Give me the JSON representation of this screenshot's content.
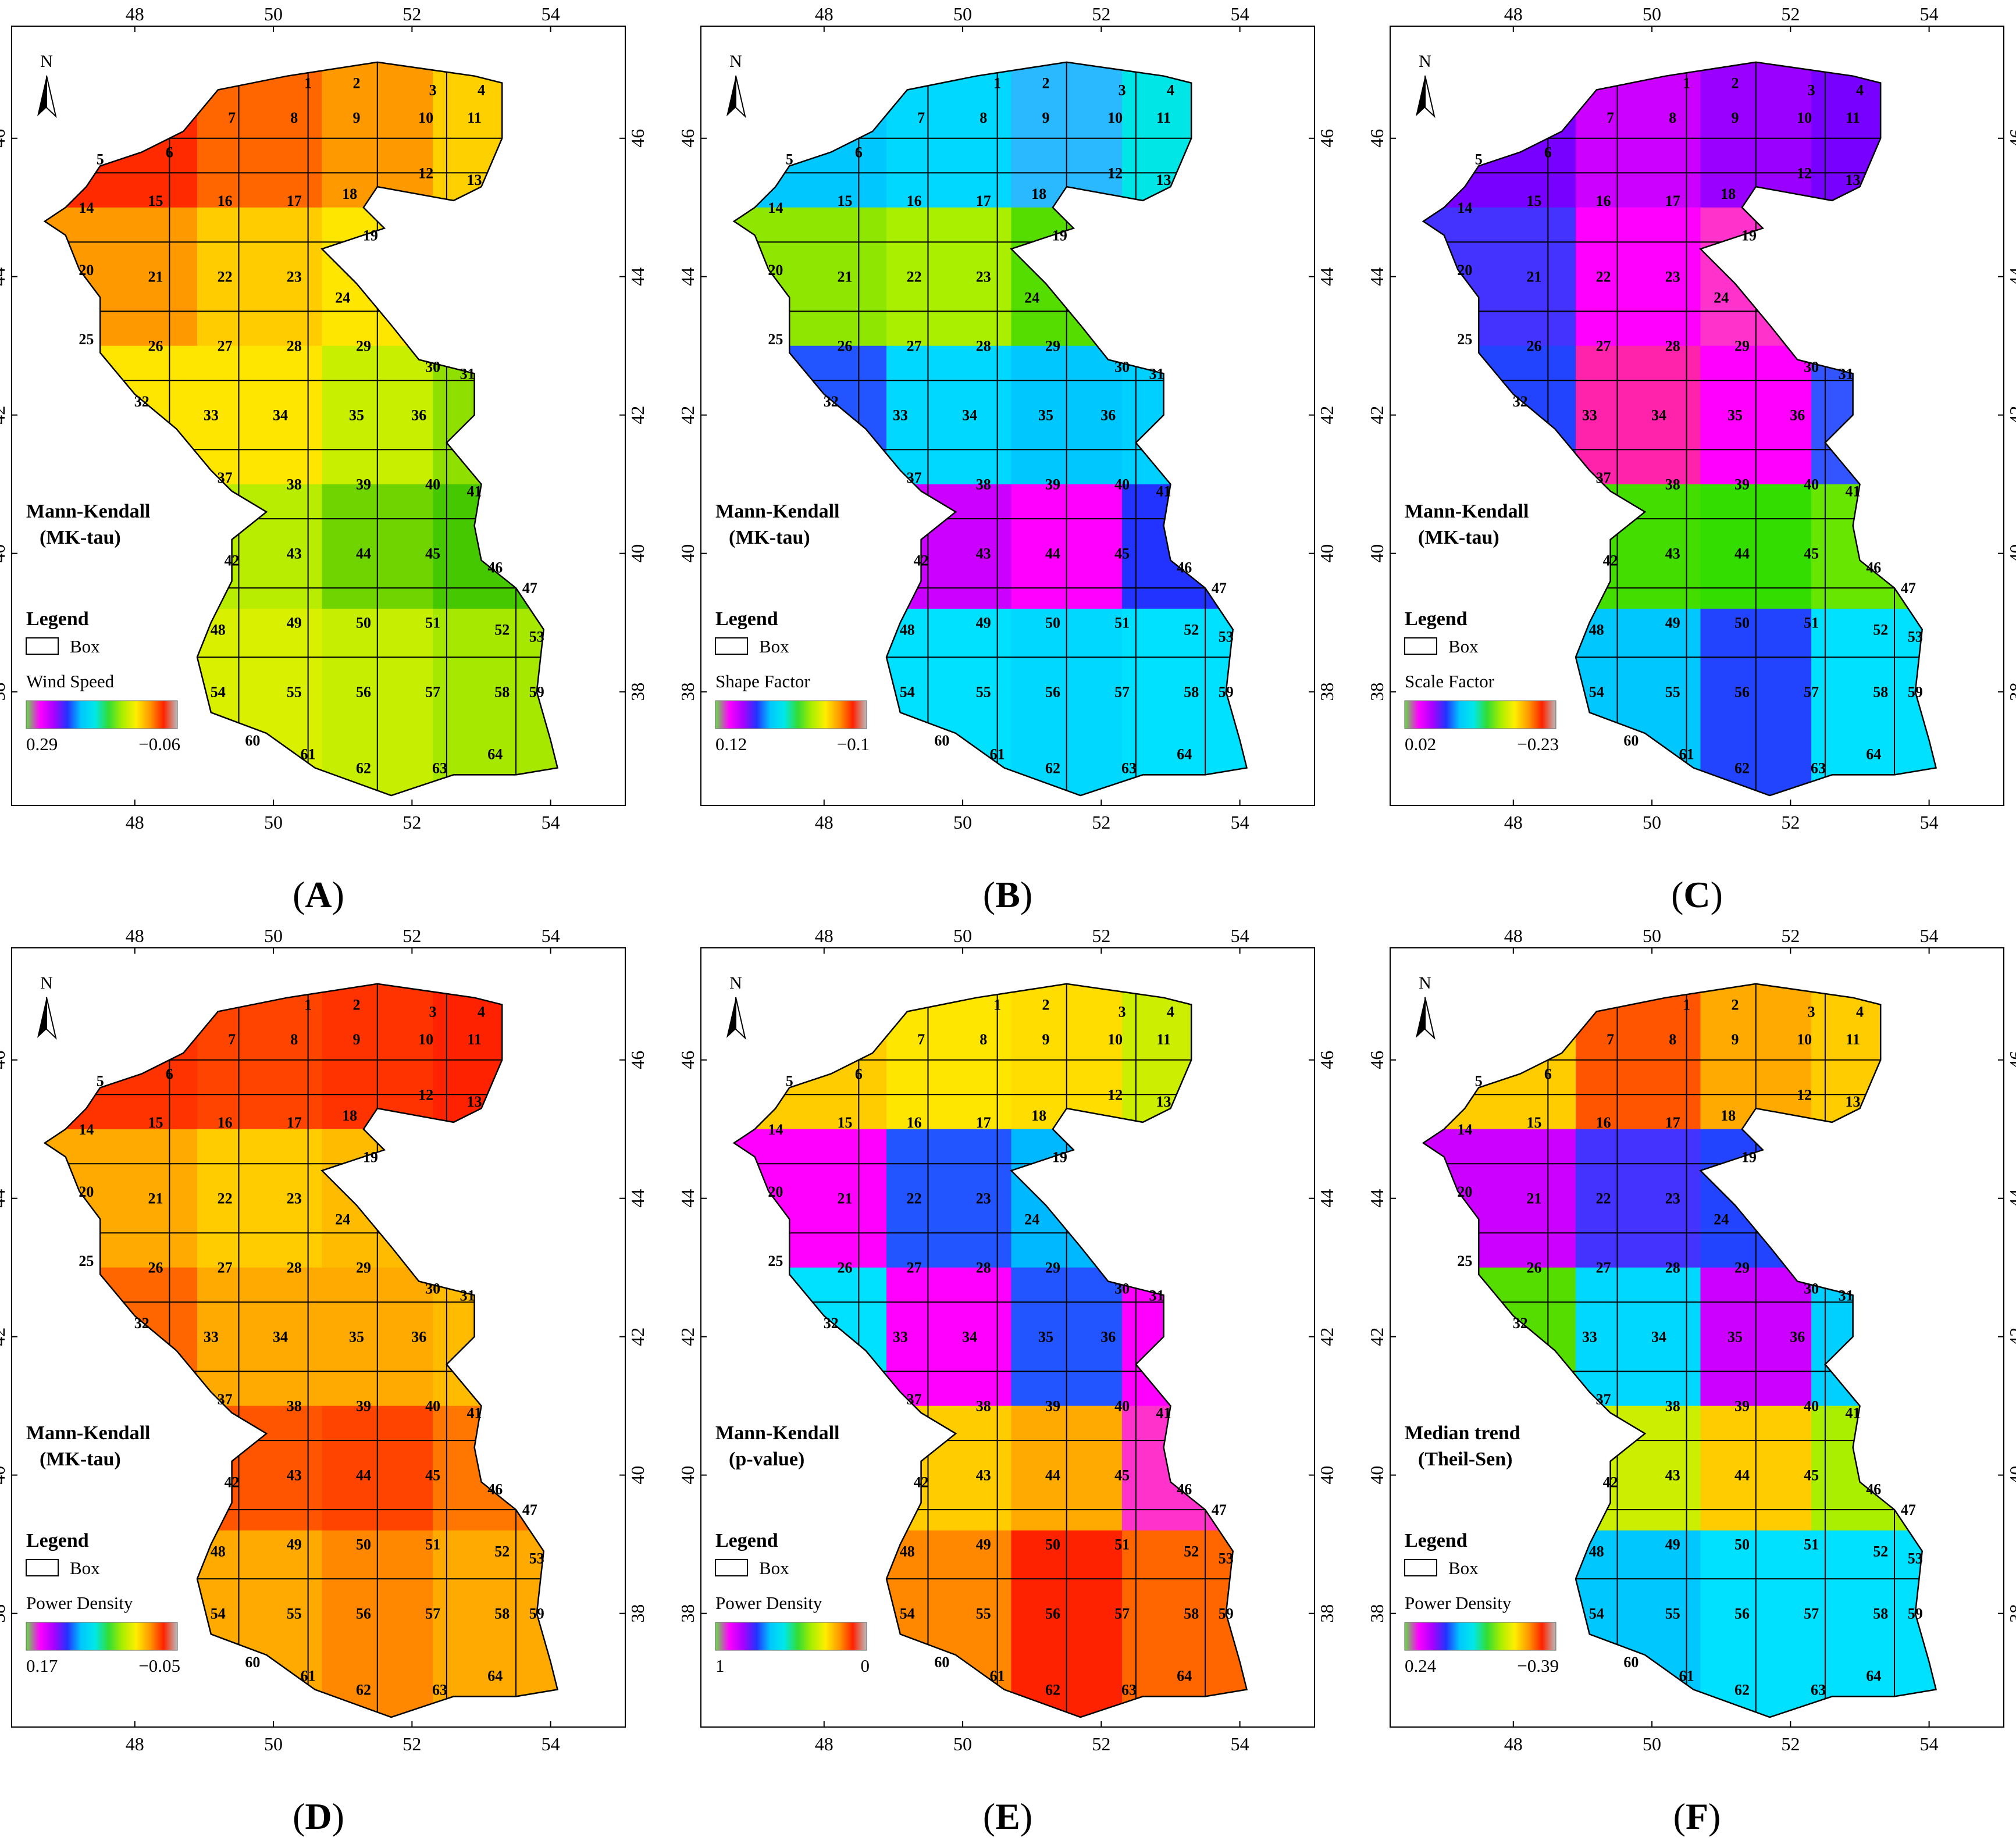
{
  "panels": [
    {
      "id": "A",
      "label": "A",
      "title_line1": "Mann-Kendall",
      "title_line2": "(MK-tau)",
      "variable": "Wind Speed",
      "scale_left": "0.29",
      "scale_right": "−0.06",
      "grid_fill": [
        [
          "#ff2a00",
          "#ff6600",
          "#ff9900",
          "#ffd000"
        ],
        [
          "#ff9900",
          "#ffcc00",
          "#ffe600",
          "#d4ef00"
        ],
        [
          "#ffe600",
          "#ffe600",
          "#c8ef00",
          "#8fe000"
        ],
        [
          "#ffe600",
          "#b8ec00",
          "#6fd400",
          "#45c800"
        ],
        [
          "#2ad8ff",
          "#d9f000",
          "#c5ee00",
          "#a7e800"
        ]
      ]
    },
    {
      "id": "B",
      "label": "B",
      "title_line1": "Mann-Kendall",
      "title_line2": "(MK-tau)",
      "variable": "Shape Factor",
      "scale_left": "0.12",
      "scale_right": "−0.1",
      "grid_fill": [
        [
          "#00c8ff",
          "#00d8ff",
          "#2ab8ff",
          "#00e6e6"
        ],
        [
          "#8fe600",
          "#aaee00",
          "#55dd00",
          "#00d8ff"
        ],
        [
          "#2255ff",
          "#00d8ff",
          "#00c8ff",
          "#00d0ff"
        ],
        [
          "#00d0ff",
          "#cc00ff",
          "#ff00ff",
          "#2233ff"
        ],
        [
          "#66dd00",
          "#00e0ff",
          "#00d8ff",
          "#00e0ff"
        ]
      ]
    },
    {
      "id": "C",
      "label": "C",
      "title_line1": "Mann-Kendall",
      "title_line2": "(MK-tau)",
      "variable": "Scale Factor",
      "scale_left": "0.02",
      "scale_right": "−0.23",
      "grid_fill": [
        [
          "#7700ff",
          "#cc00ff",
          "#9900ff",
          "#7700ff"
        ],
        [
          "#4433ff",
          "#ff00ff",
          "#ff33cc",
          "#3355ff"
        ],
        [
          "#2244ff",
          "#ff22aa",
          "#ff00ff",
          "#3355ff"
        ],
        [
          "#00e0ff",
          "#44dd00",
          "#33dd00",
          "#66e600"
        ],
        [
          "#2244ff",
          "#00c8ff",
          "#2244ff",
          "#00e0ff"
        ]
      ]
    },
    {
      "id": "D",
      "label": "D",
      "title_line1": "Mann-Kendall",
      "title_line2": "(MK-tau)",
      "variable": "Power Density",
      "scale_left": "0.17",
      "scale_right": "−0.05",
      "grid_fill": [
        [
          "#ff3300",
          "#ff4400",
          "#ff3300",
          "#ff2200"
        ],
        [
          "#ffaa00",
          "#ffcc00",
          "#ffbb00",
          "#ff9900"
        ],
        [
          "#ff6600",
          "#ffaa00",
          "#ffaa00",
          "#ffbb00"
        ],
        [
          "#ffcc00",
          "#ff5500",
          "#ff4400",
          "#ff7700"
        ],
        [
          "#ff8800",
          "#ffaa00",
          "#ff8800",
          "#ffaa00"
        ]
      ]
    },
    {
      "id": "E",
      "label": "E",
      "title_line1": "Mann-Kendall",
      "title_line2": "(p-value)",
      "variable": "Power Density",
      "scale_left": "1",
      "scale_right": "0",
      "grid_fill": [
        [
          "#ffcc00",
          "#ffe600",
          "#ffdd00",
          "#ccee00"
        ],
        [
          "#ff00ff",
          "#2255ff",
          "#00b8ff",
          "#ff22aa"
        ],
        [
          "#00e0ff",
          "#ff00ff",
          "#2255ff",
          "#ff00ff"
        ],
        [
          "#00d8ff",
          "#ffcc00",
          "#ffaa00",
          "#ff33cc"
        ],
        [
          "#ffaa00",
          "#ff8800",
          "#ff2200",
          "#ff6600"
        ]
      ]
    },
    {
      "id": "F",
      "label": "F",
      "title_line1": "Median trend",
      "title_line2": "(Theil-Sen)",
      "variable": "Power Density",
      "scale_left": "0.24",
      "scale_right": "−0.39",
      "grid_fill": [
        [
          "#ffcc00",
          "#ff5500",
          "#ffaa00",
          "#ffcc00"
        ],
        [
          "#cc00ff",
          "#4433ff",
          "#2244ff",
          "#00c8ff"
        ],
        [
          "#55dd00",
          "#00d8ff",
          "#cc00ff",
          "#00d0ff"
        ],
        [
          "#00e0ff",
          "#ccee00",
          "#ffcc00",
          "#aaee00"
        ],
        [
          "#2244ff",
          "#00c8ff",
          "#00e0ff",
          "#00e0ff"
        ]
      ]
    }
  ],
  "map_common": {
    "north_label": "N",
    "legend_title": "Legend",
    "box_label": "Box",
    "x_ticks": [
      "48",
      "50",
      "52",
      "54"
    ],
    "y_ticks": [
      "46",
      "44",
      "42",
      "40",
      "38"
    ],
    "box_numbers": [
      "1",
      "2",
      "3",
      "4",
      "5",
      "6",
      "7",
      "8",
      "9",
      "10",
      "11",
      "12",
      "13",
      "14",
      "15",
      "16",
      "17",
      "18",
      "19",
      "20",
      "21",
      "22",
      "23",
      "24",
      "25",
      "26",
      "27",
      "28",
      "29",
      "30",
      "31",
      "32",
      "33",
      "34",
      "35",
      "36",
      "37",
      "38",
      "39",
      "40",
      "41",
      "42",
      "43",
      "44",
      "45",
      "46",
      "47",
      "48",
      "49",
      "50",
      "51",
      "52",
      "53",
      "54",
      "55",
      "56",
      "57",
      "58",
      "59",
      "60",
      "61",
      "62",
      "63",
      "64"
    ],
    "ramp_colors": [
      "#66dd44",
      "#ff00ff",
      "#aa00ff",
      "#2233ff",
      "#00c8ff",
      "#00e8e8",
      "#33dd33",
      "#aaee00",
      "#ffee00",
      "#ff9900",
      "#ff2200",
      "#bbbbbb"
    ]
  }
}
